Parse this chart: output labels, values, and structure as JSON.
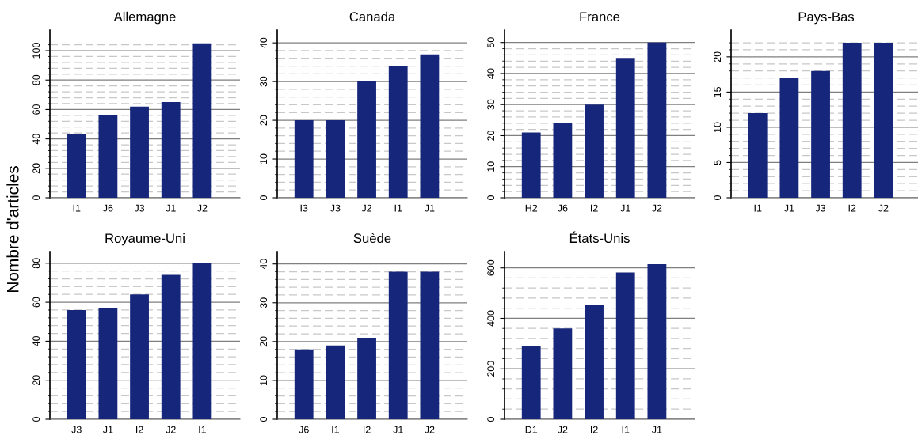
{
  "chart_data": [
    {
      "type": "bar",
      "title": "Allemagne",
      "ylabel": "Nombre d'articles",
      "categories": [
        "I1",
        "J6",
        "J3",
        "J1",
        "J2"
      ],
      "values": [
        43,
        56,
        62,
        65,
        105
      ],
      "color": "#16267b",
      "ylim": [
        0,
        114
      ],
      "grid": "y",
      "yticks": [
        0,
        20,
        40,
        60,
        80,
        100,
        {
          "value": 4,
          "label": null
        },
        {
          "value": 8,
          "label": null
        },
        {
          "value": 12,
          "label": null
        },
        {
          "value": 16,
          "label": null
        },
        {
          "value": 24,
          "label": null
        },
        {
          "value": 28,
          "label": null
        },
        {
          "value": 32,
          "label": null
        },
        {
          "value": 36,
          "label": null
        },
        {
          "value": 44,
          "label": null
        },
        {
          "value": 48,
          "label": null
        },
        {
          "value": 52,
          "label": null
        },
        {
          "value": 56,
          "label": null
        },
        {
          "value": 64,
          "label": null
        },
        {
          "value": 68,
          "label": null
        },
        {
          "value": 72,
          "label": null
        },
        {
          "value": 76,
          "label": null
        },
        {
          "value": 84,
          "label": null
        },
        {
          "value": 88,
          "label": null
        },
        {
          "value": 92,
          "label": null
        },
        {
          "value": 96,
          "label": null
        },
        {
          "value": 104,
          "label": null
        }
      ]
    },
    {
      "type": "bar",
      "title": "Canada",
      "categories": [
        "I3",
        "J3",
        "J2",
        "I1",
        "J1"
      ],
      "values": [
        20,
        20,
        30,
        34,
        37
      ],
      "color": "#16267b",
      "ylim": [
        0,
        43.3
      ],
      "grid": "y",
      "yticks": [
        0,
        10,
        20,
        30,
        40,
        {
          "value": 2,
          "label": null
        },
        {
          "value": 4,
          "label": null
        },
        {
          "value": 6,
          "label": null
        },
        {
          "value": 8,
          "label": null
        },
        {
          "value": 12,
          "label": null
        },
        {
          "value": 14,
          "label": null
        },
        {
          "value": 16,
          "label": null
        },
        {
          "value": 18,
          "label": null
        },
        {
          "value": 22,
          "label": null
        },
        {
          "value": 24,
          "label": null
        },
        {
          "value": 26,
          "label": null
        },
        {
          "value": 28,
          "label": null
        },
        {
          "value": 32,
          "label": null
        },
        {
          "value": 34,
          "label": null
        },
        {
          "value": 36,
          "label": null
        },
        {
          "value": 38,
          "label": null
        }
      ]
    },
    {
      "type": "bar",
      "title": "France",
      "categories": [
        "H2",
        "J6",
        "I2",
        "J1",
        "J2"
      ],
      "values": [
        21,
        24,
        30,
        45,
        50
      ],
      "color": "#16267b",
      "ylim": [
        0,
        54
      ],
      "grid": "y",
      "yticks": [
        0,
        10,
        20,
        30,
        40,
        50,
        {
          "value": 2,
          "label": null
        },
        {
          "value": 4,
          "label": null
        },
        {
          "value": 6,
          "label": null
        },
        {
          "value": 8,
          "label": null
        },
        {
          "value": 12,
          "label": null
        },
        {
          "value": 14,
          "label": null
        },
        {
          "value": 16,
          "label": null
        },
        {
          "value": 18,
          "label": null
        },
        {
          "value": 22,
          "label": null
        },
        {
          "value": 24,
          "label": null
        },
        {
          "value": 26,
          "label": null
        },
        {
          "value": 28,
          "label": null
        },
        {
          "value": 32,
          "label": null
        },
        {
          "value": 34,
          "label": null
        },
        {
          "value": 36,
          "label": null
        },
        {
          "value": 38,
          "label": null
        },
        {
          "value": 42,
          "label": null
        },
        {
          "value": 44,
          "label": null
        },
        {
          "value": 46,
          "label": null
        },
        {
          "value": 48,
          "label": null
        }
      ]
    },
    {
      "type": "bar",
      "title": "Pays-Bas",
      "categories": [
        "I1",
        "J1",
        "J3",
        "I2",
        "J2"
      ],
      "values": [
        12,
        17,
        18,
        22,
        22
      ],
      "color": "#16267b",
      "ylim": [
        0,
        23.8
      ],
      "grid": "y",
      "yticks": [
        0,
        5,
        10,
        15,
        20,
        {
          "value": 1,
          "label": null
        },
        {
          "value": 2,
          "label": null
        },
        {
          "value": 3,
          "label": null
        },
        {
          "value": 4,
          "label": null
        },
        {
          "value": 6,
          "label": null
        },
        {
          "value": 7,
          "label": null
        },
        {
          "value": 8,
          "label": null
        },
        {
          "value": 9,
          "label": null
        },
        {
          "value": 11,
          "label": null
        },
        {
          "value": 12,
          "label": null
        },
        {
          "value": 13,
          "label": null
        },
        {
          "value": 14,
          "label": null
        },
        {
          "value": 16,
          "label": null
        },
        {
          "value": 17,
          "label": null
        },
        {
          "value": 18,
          "label": null
        },
        {
          "value": 19,
          "label": null
        },
        {
          "value": 21,
          "label": null
        },
        {
          "value": 22,
          "label": null
        }
      ]
    },
    {
      "type": "bar",
      "title": "Royaume-Uni",
      "categories": [
        "J3",
        "J1",
        "I2",
        "J2",
        "I1"
      ],
      "values": [
        56,
        57,
        64,
        74,
        80
      ],
      "color": "#16267b",
      "ylim": [
        0,
        86
      ],
      "grid": "y",
      "yticks": [
        0,
        20,
        40,
        60,
        80,
        {
          "value": 4,
          "label": null
        },
        {
          "value": 8,
          "label": null
        },
        {
          "value": 12,
          "label": null
        },
        {
          "value": 16,
          "label": null
        },
        {
          "value": 24,
          "label": null
        },
        {
          "value": 28,
          "label": null
        },
        {
          "value": 32,
          "label": null
        },
        {
          "value": 36,
          "label": null
        },
        {
          "value": 44,
          "label": null
        },
        {
          "value": 48,
          "label": null
        },
        {
          "value": 52,
          "label": null
        },
        {
          "value": 56,
          "label": null
        },
        {
          "value": 64,
          "label": null
        },
        {
          "value": 68,
          "label": null
        },
        {
          "value": 72,
          "label": null
        },
        {
          "value": 76,
          "label": null
        }
      ]
    },
    {
      "type": "bar",
      "title": "Suède",
      "categories": [
        "J6",
        "I1",
        "I2",
        "J1",
        "J2"
      ],
      "values": [
        18,
        19,
        21,
        38,
        38
      ],
      "color": "#16267b",
      "ylim": [
        0,
        43.2
      ],
      "grid": "y",
      "yticks": [
        0,
        10,
        20,
        30,
        40,
        {
          "value": 2,
          "label": null
        },
        {
          "value": 4,
          "label": null
        },
        {
          "value": 6,
          "label": null
        },
        {
          "value": 8,
          "label": null
        },
        {
          "value": 12,
          "label": null
        },
        {
          "value": 14,
          "label": null
        },
        {
          "value": 16,
          "label": null
        },
        {
          "value": 18,
          "label": null
        },
        {
          "value": 22,
          "label": null
        },
        {
          "value": 24,
          "label": null
        },
        {
          "value": 26,
          "label": null
        },
        {
          "value": 28,
          "label": null
        },
        {
          "value": 32,
          "label": null
        },
        {
          "value": 34,
          "label": null
        },
        {
          "value": 36,
          "label": null
        },
        {
          "value": 38,
          "label": null
        }
      ]
    },
    {
      "type": "bar",
      "title": "États-Unis",
      "categories": [
        "D1",
        "J2",
        "I2",
        "I1",
        "J1"
      ],
      "values": [
        291,
        360,
        455,
        582,
        615
      ],
      "color": "#16267b",
      "ylim": [
        0,
        665
      ],
      "grid": "y",
      "yticks": [
        0,
        200,
        400,
        600,
        {
          "value": 40,
          "label": null
        },
        {
          "value": 80,
          "label": null
        },
        {
          "value": 120,
          "label": null
        },
        {
          "value": 160,
          "label": null
        },
        {
          "value": 240,
          "label": null
        },
        {
          "value": 280,
          "label": null
        },
        {
          "value": 320,
          "label": null
        },
        {
          "value": 360,
          "label": null
        },
        {
          "value": 440,
          "label": null
        },
        {
          "value": 480,
          "label": null
        },
        {
          "value": 520,
          "label": null
        },
        {
          "value": 560,
          "label": null
        }
      ]
    }
  ]
}
